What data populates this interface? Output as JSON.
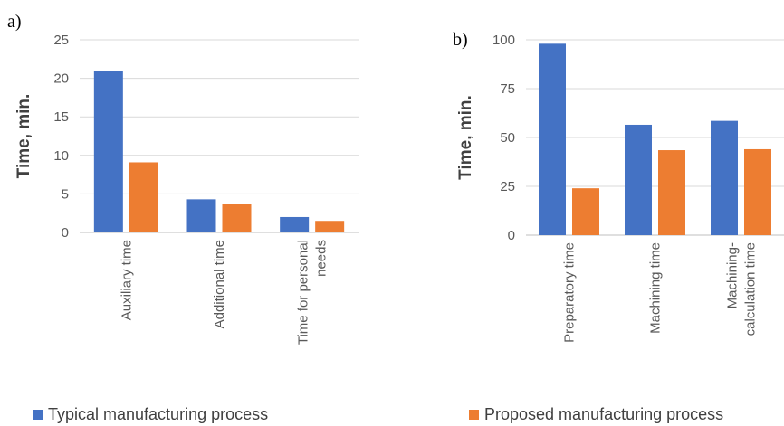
{
  "chart_data": [
    {
      "type": "bar",
      "panel": "a)",
      "categories": [
        "Auxiliary time",
        "Additional time",
        "Time for personal needs"
      ],
      "category_lines": [
        [
          "Auxiliary time"
        ],
        [
          "Additional time"
        ],
        [
          "Time for personal",
          "needs"
        ]
      ],
      "series": [
        {
          "name": "Typical manufacturing process",
          "values": [
            21.0,
            4.3,
            2.0
          ]
        },
        {
          "name": "Proposed manufacturing process",
          "values": [
            9.1,
            3.7,
            1.5
          ]
        }
      ],
      "ylabel": "Time, min.",
      "ylim": [
        0,
        25
      ],
      "yticks": [
        0,
        5,
        10,
        15,
        20,
        25
      ],
      "grid": true
    },
    {
      "type": "bar",
      "panel": "b)",
      "categories": [
        "Preparatory time",
        "Machining time",
        "Machining-calculation time"
      ],
      "category_lines": [
        [
          "Preparatory time"
        ],
        [
          "Machining time"
        ],
        [
          "Machining-",
          "calculation time"
        ]
      ],
      "series": [
        {
          "name": "Typical manufacturing process",
          "values": [
            98,
            56.5,
            58.5
          ]
        },
        {
          "name": "Proposed manufacturing process",
          "values": [
            24,
            43.5,
            44
          ]
        }
      ],
      "ylabel": "Time, min.",
      "ylim": [
        0,
        100
      ],
      "yticks": [
        0,
        25,
        50,
        75,
        100
      ],
      "grid": true
    }
  ],
  "colors": {
    "typical": "#4472C4",
    "proposed": "#ED7D31",
    "grid": "#D9D9D9"
  },
  "legend": {
    "placement": "bottom",
    "items": [
      {
        "label": "Typical manufacturing process",
        "color": "#4472C4"
      },
      {
        "label": "Proposed manufacturing process",
        "color": "#ED7D31"
      }
    ]
  }
}
